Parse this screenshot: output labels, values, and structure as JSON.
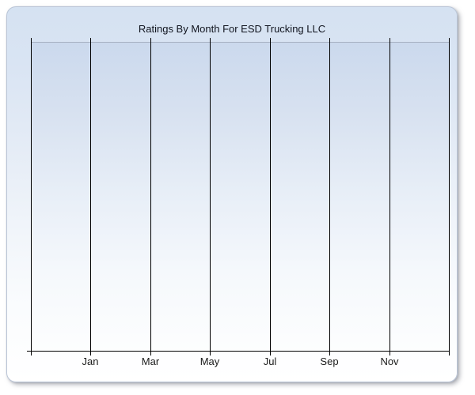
{
  "chart_panel": {
    "title": "Ratings By Month For ESD Trucking LLC"
  },
  "chart_data": {
    "type": "line",
    "title": "Ratings By Month For ESD Trucking LLC",
    "categories": [
      "Jan",
      "Mar",
      "May",
      "Jul",
      "Sep",
      "Nov"
    ],
    "series": [],
    "values": [],
    "xlabel": "",
    "ylabel": "",
    "legend": "none",
    "grid": "vertical gridlines only, 8 lines, labels under alternating lines",
    "plot_background": "vertical gradient, light blue to white",
    "note": "empty chart - no data points or y-axis tick labels are rendered"
  },
  "colors": {
    "page_background": "#ffffff",
    "panel_top": "#d5e2f2",
    "panel_bottom": "#ffffff",
    "panel_border": "#b9c4d6",
    "plot_top": "#cbd9ed",
    "plot_bottom": "#fdfefe",
    "plot_top_border": "#a6b0c2",
    "gridline": "#000000",
    "axis": "#000000",
    "title_text": "#10141e",
    "label_text": "#1a1a1a"
  }
}
